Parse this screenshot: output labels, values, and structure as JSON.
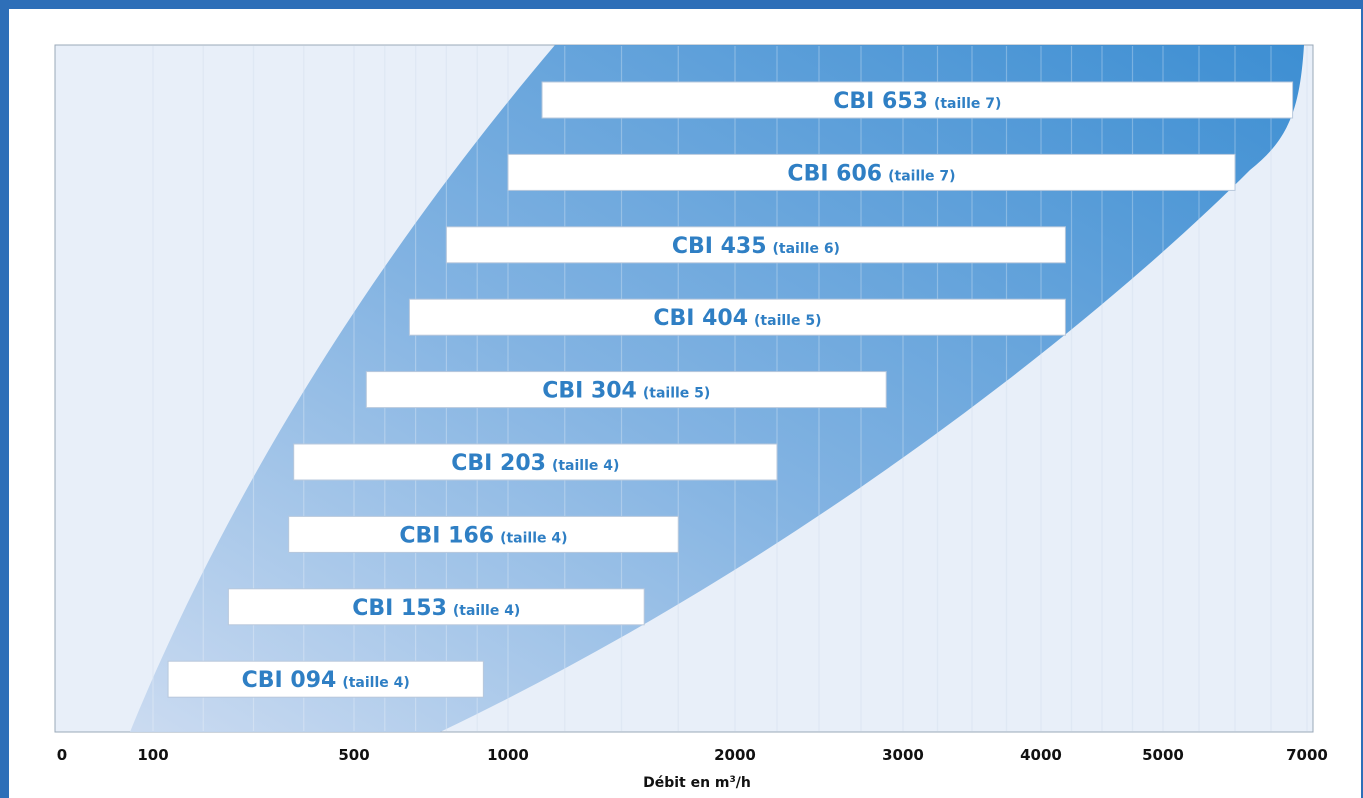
{
  "chart_data": {
    "type": "bar",
    "orientation": "horizontal-range",
    "xlabel": "Débit en m³/h",
    "xlabel_main": "Débit en m",
    "xlabel_sup": "3",
    "xlabel_tail": "/h",
    "x_ticks": [
      "0",
      "100",
      "500",
      "1000",
      "2000",
      "3000",
      "4000",
      "5000",
      "7000"
    ],
    "grid": true,
    "colors": {
      "band": "#4a90d4",
      "plot_bg": "#e8eff9",
      "bar_fill": "#ffffff",
      "label": "#2f7fc4",
      "frame": "#2e6fb8"
    },
    "series": [
      {
        "name": "CBI 653",
        "size": "(taille 7)",
        "range": [
          1150,
          6800
        ]
      },
      {
        "name": "CBI 606",
        "size": "(taille 7)",
        "range": [
          1000,
          6000
        ]
      },
      {
        "name": "CBI 435",
        "size": "(taille 6)",
        "range": [
          800,
          4200
        ]
      },
      {
        "name": "CBI 404",
        "size": "(taille 5)",
        "range": [
          680,
          4200
        ]
      },
      {
        "name": "CBI 304",
        "size": "(taille 5)",
        "range": [
          540,
          2900
        ]
      },
      {
        "name": "CBI 203",
        "size": "(taille 4)",
        "range": [
          380,
          2250
        ]
      },
      {
        "name": "CBI 166",
        "size": "(taille 4)",
        "range": [
          370,
          1750
        ]
      },
      {
        "name": "CBI 153",
        "size": "(taille 4)",
        "range": [
          250,
          1600
        ]
      },
      {
        "name": "CBI 094",
        "size": "(taille 4)",
        "range": [
          130,
          920
        ]
      }
    ]
  }
}
